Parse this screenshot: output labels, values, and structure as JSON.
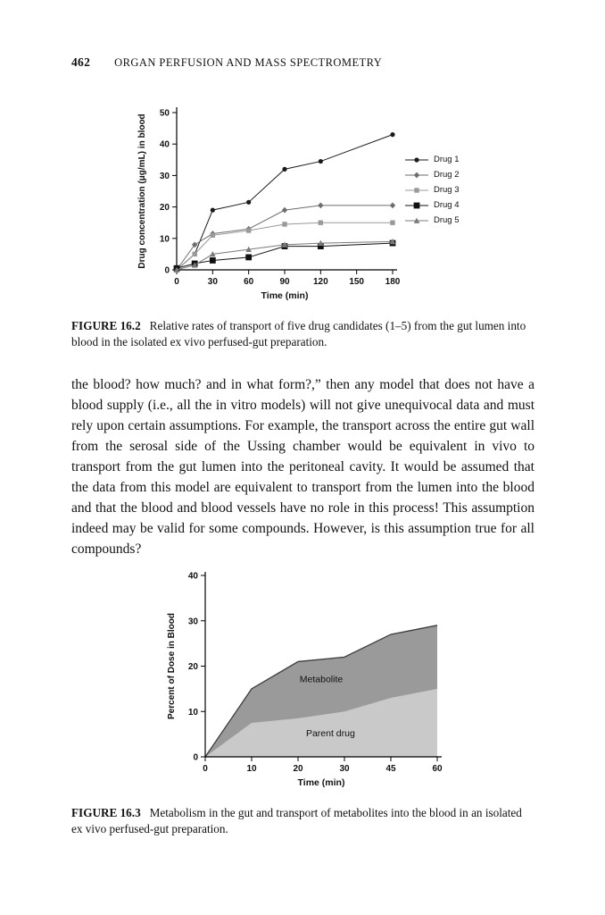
{
  "page": {
    "number": "462",
    "running_head": "ORGAN PERFUSION AND MASS SPECTROMETRY"
  },
  "figure2": {
    "label": "FIGURE 16.2",
    "caption": "Relative rates of transport of five drug candidates (1–5) from the gut lumen into blood in the isolated ex vivo perfused-gut preparation."
  },
  "body": {
    "paragraph": "the blood? how much? and in what form?,” then any model that does not have a blood supply (i.e., all the in vitro models) will not give unequivocal data and must rely upon certain assumptions. For example, the transport across the entire gut wall from the serosal side of the Ussing chamber would be equivalent in vivo to transport from the gut lumen into the peritoneal cavity. It would be assumed that the data from this model are equivalent to transport from the lumen into the blood and that the blood and blood vessels have no role in this process! This assumption indeed may be valid for some compounds. However, is this assumption true for all compounds?"
  },
  "figure3": {
    "label": "FIGURE 16.3",
    "caption": "Metabolism in the gut and transport of metabolites into the blood in an isolated ex vivo perfused-gut preparation."
  },
  "chart_data": [
    {
      "type": "line",
      "title": "",
      "xlabel": "Time (min)",
      "ylabel": "Drug concentration (μg/mL) in blood",
      "x": [
        0,
        15,
        30,
        60,
        90,
        120,
        180
      ],
      "xticks": [
        0,
        30,
        60,
        90,
        120,
        150,
        180
      ],
      "xlim": [
        0,
        180
      ],
      "ylim": [
        0,
        50
      ],
      "yticks": [
        0,
        10,
        20,
        30,
        40,
        50
      ],
      "grid": false,
      "legend_position": "right",
      "series": [
        {
          "name": "Drug 1",
          "marker": "circle",
          "color": "#1a1a1a",
          "values": [
            0,
            5,
            19,
            21.5,
            32,
            34.5,
            43
          ]
        },
        {
          "name": "Drug 2",
          "marker": "diamond",
          "color": "#6e6e6e",
          "values": [
            0,
            8,
            11.5,
            13,
            19,
            20.5,
            20.5
          ]
        },
        {
          "name": "Drug 3",
          "marker": "square",
          "color": "#999999",
          "values": [
            0,
            5,
            11,
            12.5,
            14.5,
            15,
            15
          ]
        },
        {
          "name": "Drug 4",
          "marker": "square-big",
          "color": "#111111",
          "values": [
            0.5,
            2,
            3,
            4,
            7.5,
            7.5,
            8.5
          ]
        },
        {
          "name": "Drug 5",
          "marker": "triangle",
          "color": "#7a7a7a",
          "values": [
            0,
            1.5,
            5,
            6.5,
            8,
            8.5,
            9
          ]
        }
      ]
    },
    {
      "type": "area",
      "title": "",
      "xlabel": "Time (min)",
      "ylabel": "Percent of Dose in Blood",
      "categories": [
        0,
        10,
        20,
        30,
        45,
        60
      ],
      "ylim": [
        0,
        40
      ],
      "yticks": [
        0,
        10,
        20,
        30,
        40
      ],
      "grid": false,
      "stacked": true,
      "series": [
        {
          "name": "Parent drug",
          "color": "#c9c9c9",
          "values": [
            0,
            7.5,
            8.5,
            10,
            13,
            15
          ]
        },
        {
          "name": "Metabolite",
          "color": "#9a9a9a",
          "values": [
            0,
            7.5,
            12.5,
            12,
            14,
            14
          ]
        }
      ],
      "labels": [
        {
          "text": "Metabolite",
          "t": 25,
          "v": 16.5
        },
        {
          "text": "Parent drug",
          "t": 27,
          "v": 4.5
        }
      ]
    }
  ]
}
